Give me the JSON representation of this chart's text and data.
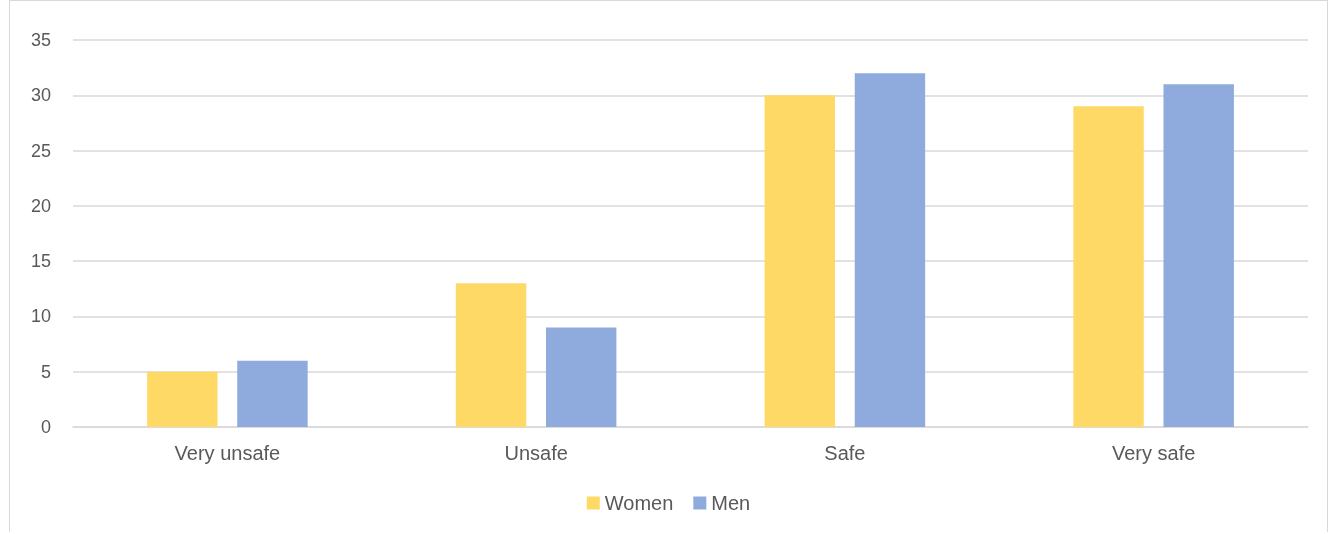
{
  "chart_data": {
    "type": "bar",
    "categories": [
      "Very unsafe",
      "Unsafe",
      "Safe",
      "Very safe"
    ],
    "series": [
      {
        "name": "Women",
        "color": "#ffd966",
        "values": [
          5,
          13,
          30,
          29
        ]
      },
      {
        "name": "Men",
        "color": "#8faadc",
        "values": [
          6,
          9,
          32,
          31
        ]
      }
    ],
    "ylim": [
      0,
      35
    ],
    "yticks": [
      0,
      5,
      10,
      15,
      20,
      25,
      30,
      35
    ],
    "grid": "y",
    "legend": "bottom"
  }
}
